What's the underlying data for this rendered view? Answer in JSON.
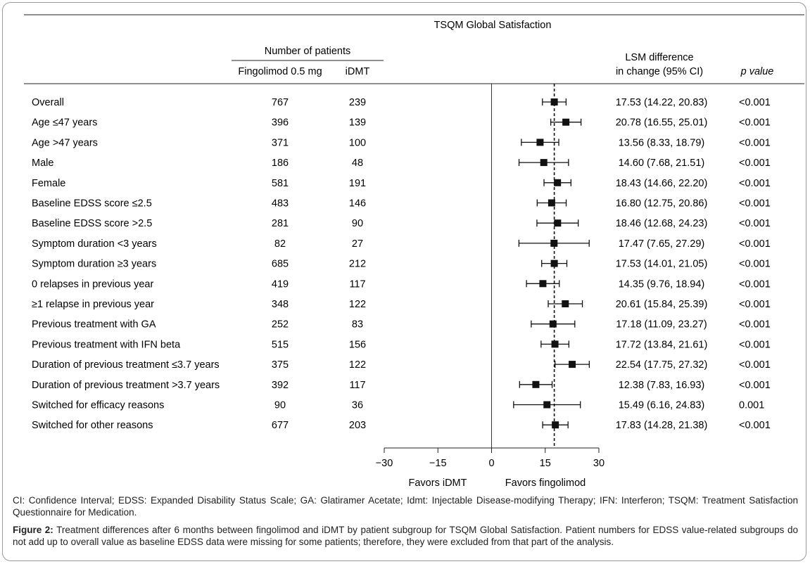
{
  "chart_data": {
    "type": "forest",
    "title": "TSQM Global Satisfaction",
    "group_header": "Number of patients",
    "columns": {
      "subgroup": "",
      "n1": "Fingolimod 0.5 mg",
      "n2": "iDMT",
      "estimate_line1": "LSM difference",
      "estimate_line2": "in change (95% CI)",
      "p": "p value"
    },
    "xlim": [
      -30,
      30
    ],
    "xticks": [
      -30,
      -15,
      0,
      15,
      30
    ],
    "xtick_labels": [
      "−30",
      "−15",
      "0",
      "15",
      "30"
    ],
    "reference_line": 0,
    "overall_line": 17.53,
    "favors_left": "Favors iDMT",
    "favors_right": "Favors fingolimod",
    "rows": [
      {
        "label": "Overall",
        "n1": "767",
        "n2": "239",
        "est": 17.53,
        "lo": 14.22,
        "hi": 20.83,
        "ci_text": "17.53 (14.22, 20.83)",
        "p": "<0.001"
      },
      {
        "label": "Age ≤47 years",
        "n1": "396",
        "n2": "139",
        "est": 20.78,
        "lo": 16.55,
        "hi": 25.01,
        "ci_text": "20.78 (16.55, 25.01)",
        "p": "<0.001"
      },
      {
        "label": "Age >47 years",
        "n1": "371",
        "n2": "100",
        "est": 13.56,
        "lo": 8.33,
        "hi": 18.79,
        "ci_text": "13.56 (8.33, 18.79)",
        "p": "<0.001"
      },
      {
        "label": "Male",
        "n1": "186",
        "n2": "48",
        "est": 14.6,
        "lo": 7.68,
        "hi": 21.51,
        "ci_text": "14.60 (7.68, 21.51)",
        "p": "<0.001"
      },
      {
        "label": "Female",
        "n1": "581",
        "n2": "191",
        "est": 18.43,
        "lo": 14.66,
        "hi": 22.2,
        "ci_text": "18.43 (14.66, 22.20)",
        "p": "<0.001"
      },
      {
        "label": "Baseline EDSS score ≤2.5",
        "n1": "483",
        "n2": "146",
        "est": 16.8,
        "lo": 12.75,
        "hi": 20.86,
        "ci_text": "16.80 (12.75, 20.86)",
        "p": "<0.001"
      },
      {
        "label": "Baseline EDSS score >2.5",
        "n1": "281",
        "n2": "90",
        "est": 18.46,
        "lo": 12.68,
        "hi": 24.23,
        "ci_text": "18.46 (12.68, 24.23)",
        "p": "<0.001"
      },
      {
        "label": "Symptom duration <3 years",
        "n1": "82",
        "n2": "27",
        "est": 17.47,
        "lo": 7.65,
        "hi": 27.29,
        "ci_text": "17.47 (7.65, 27.29)",
        "p": "<0.001"
      },
      {
        "label": "Symptom duration ≥3 years",
        "n1": "685",
        "n2": "212",
        "est": 17.53,
        "lo": 14.01,
        "hi": 21.05,
        "ci_text": "17.53 (14.01, 21.05)",
        "p": "<0.001"
      },
      {
        "label": "0 relapses in previous year",
        "n1": "419",
        "n2": "117",
        "est": 14.35,
        "lo": 9.76,
        "hi": 18.94,
        "ci_text": "14.35 (9.76, 18.94)",
        "p": "<0.001"
      },
      {
        "label": "≥1 relapse in previous year",
        "n1": "348",
        "n2": "122",
        "est": 20.61,
        "lo": 15.84,
        "hi": 25.39,
        "ci_text": "20.61 (15.84, 25.39)",
        "p": "<0.001"
      },
      {
        "label": "Previous treatment with GA",
        "n1": "252",
        "n2": "83",
        "est": 17.18,
        "lo": 11.09,
        "hi": 23.27,
        "ci_text": "17.18 (11.09, 23.27)",
        "p": "<0.001"
      },
      {
        "label": "Previous treatment with IFN beta",
        "n1": "515",
        "n2": "156",
        "est": 17.72,
        "lo": 13.84,
        "hi": 21.61,
        "ci_text": "17.72 (13.84, 21.61)",
        "p": "<0.001"
      },
      {
        "label": "Duration of previous treatment ≤3.7 years",
        "n1": "375",
        "n2": "122",
        "est": 22.54,
        "lo": 17.75,
        "hi": 27.32,
        "ci_text": "22.54 (17.75, 27.32)",
        "p": "<0.001"
      },
      {
        "label": "Duration of previous treatment >3.7 years",
        "n1": "392",
        "n2": "117",
        "est": 12.38,
        "lo": 7.83,
        "hi": 16.93,
        "ci_text": "12.38 (7.83, 16.93)",
        "p": "<0.001"
      },
      {
        "label": "Switched for efficacy reasons",
        "n1": "90",
        "n2": "36",
        "est": 15.49,
        "lo": 6.16,
        "hi": 24.83,
        "ci_text": "15.49 (6.16, 24.83)",
        "p": "0.001"
      },
      {
        "label": "Switched for other reasons",
        "n1": "677",
        "n2": "203",
        "est": 17.83,
        "lo": 14.28,
        "hi": 21.38,
        "ci_text": "17.83 (14.28, 21.38)",
        "p": "<0.001"
      }
    ]
  },
  "footnote": "CI: Confidence Interval; EDSS: Expanded Disability Status Scale; GA: Glatiramer Acetate; Idmt: Injectable Disease-modifying Therapy; IFN: Interferon; TSQM: Treatment Satisfaction Questionnaire for Medication.",
  "figure_caption": {
    "label": "Figure 2:",
    "text": " Treatment differences after 6 months between fingolimod and iDMT by patient subgroup for TSQM Global Satisfaction. Patient numbers for EDSS value-related subgroups do not add up to overall value as baseline EDSS data were missing for some patients; therefore, they were excluded from that part of the analysis."
  }
}
